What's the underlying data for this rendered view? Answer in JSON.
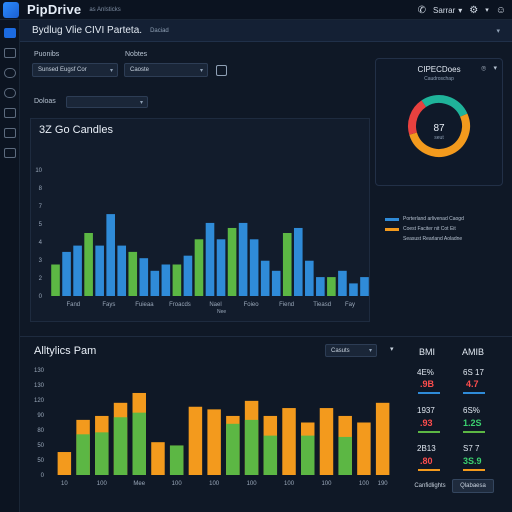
{
  "app": {
    "name": "PipDrive",
    "subtitle": "as Anlsticks",
    "account_label": "Sarrar",
    "page_title": "Bydlug Vlie CIVI Parteta.",
    "page_subtitle": "Daciad"
  },
  "filters": {
    "label_1": "Puonibs",
    "label_2": "Nobtes",
    "select_1": "Sunsed Eugsf Cor",
    "select_2": "Caoste",
    "label_3": "Doloas"
  },
  "main_chart": {
    "title": "3Z Go Candles",
    "x_axis_label": "Nee",
    "legend": [
      {
        "label": "Porterland arlivenad Caogd",
        "color": "#2f8bd8"
      },
      {
        "label": "Coest Faciter nit Cot Eit",
        "color": "#f39a1d"
      },
      {
        "label": "Seasust Rearland Aoladne",
        "color": "#8a9ab0"
      }
    ]
  },
  "donut": {
    "title": "CIPECDoes",
    "subtitle": "Caudroschap",
    "value": "87",
    "value_sub": "seut"
  },
  "analytics": {
    "title": "Alltylics Pam",
    "dropdown": "Casuts",
    "col_1_header": "BMI",
    "col_2_header": "AMIB",
    "stats_col_1": [
      {
        "top": "4E%",
        "bottom": ".9B",
        "color": "#ff4d4d"
      },
      {
        "top": "1937",
        "bottom": ".93",
        "color": "#ff4d4d"
      },
      {
        "top": "2B13",
        "bottom": ".80",
        "color": "#ff4d4d"
      }
    ],
    "stats_col_2": [
      {
        "top": "6S 17",
        "bottom": "4.7",
        "color": "#ff4d4d"
      },
      {
        "top": "6S%",
        "bottom": "1.2S",
        "color": "#3bd16f"
      },
      {
        "top": "S7 7",
        "bottom": "3S.9",
        "color": "#3bd16f"
      }
    ],
    "footer_btn_1": "Canfidlights",
    "footer_btn_2": "Qlabaesa"
  },
  "colors": {
    "blue": "#2f8bd8",
    "green": "#5cb744",
    "orange": "#f39a1d",
    "teal": "#1fb39a",
    "red": "#e8413f",
    "accent": "#1c6be0"
  },
  "chart_data": [
    {
      "type": "bar",
      "title": "3Z Go Candles",
      "xlabel": "Nee",
      "ylabel": "",
      "ylim": [
        0,
        10
      ],
      "yticks": [
        "0",
        "2",
        "3",
        "4",
        "5",
        "7",
        "8",
        "10"
      ],
      "x_labels": [
        {
          "label": "Fand",
          "index": 2
        },
        {
          "label": "Fays",
          "index": 6
        },
        {
          "label": "Fuieaa",
          "index": 10
        },
        {
          "label": "Froacds",
          "index": 14
        },
        {
          "label": "Nael",
          "index": 18
        },
        {
          "label": "Foieo",
          "index": 22
        },
        {
          "label": "Fiend",
          "index": 26
        },
        {
          "label": "Tieasd",
          "index": 30
        },
        {
          "label": "Fay",
          "index": 34
        }
      ],
      "bars": [
        {
          "value": 2.5,
          "series": "green"
        },
        {
          "value": 3.5,
          "series": "blue"
        },
        {
          "value": 4.0,
          "series": "blue"
        },
        {
          "value": 5.0,
          "series": "green"
        },
        {
          "value": 4.0,
          "series": "blue"
        },
        {
          "value": 6.5,
          "series": "blue"
        },
        {
          "value": 4.0,
          "series": "blue"
        },
        {
          "value": 3.5,
          "series": "green"
        },
        {
          "value": 3.0,
          "series": "blue"
        },
        {
          "value": 2.0,
          "series": "blue"
        },
        {
          "value": 2.5,
          "series": "blue"
        },
        {
          "value": 2.5,
          "series": "green"
        },
        {
          "value": 3.2,
          "series": "blue"
        },
        {
          "value": 4.5,
          "series": "green"
        },
        {
          "value": 5.8,
          "series": "blue"
        },
        {
          "value": 4.5,
          "series": "blue"
        },
        {
          "value": 5.4,
          "series": "green"
        },
        {
          "value": 5.8,
          "series": "blue"
        },
        {
          "value": 4.5,
          "series": "blue"
        },
        {
          "value": 2.8,
          "series": "blue"
        },
        {
          "value": 2.0,
          "series": "blue"
        },
        {
          "value": 5.0,
          "series": "green"
        },
        {
          "value": 5.4,
          "series": "blue"
        },
        {
          "value": 2.8,
          "series": "blue"
        },
        {
          "value": 1.5,
          "series": "blue"
        },
        {
          "value": 1.5,
          "series": "green"
        },
        {
          "value": 2.0,
          "series": "blue"
        },
        {
          "value": 1.0,
          "series": "blue"
        },
        {
          "value": 1.5,
          "series": "blue"
        }
      ]
    },
    {
      "type": "donut",
      "title": "CIPECDoes",
      "segments": [
        {
          "color": "#1fb39a",
          "value": 28
        },
        {
          "color": "#f39a1d",
          "value": 52
        },
        {
          "color": "#e8413f",
          "value": 20
        }
      ],
      "center_label": "87"
    },
    {
      "type": "bar",
      "title": "Alltylics Pam",
      "ylim": [
        0,
        160
      ],
      "yticks": [
        "0",
        "50",
        "50",
        "80",
        "90",
        "120",
        "130",
        "130"
      ],
      "x_labels": [
        {
          "label": "10",
          "index": 0
        },
        {
          "label": "100",
          "index": 2
        },
        {
          "label": "Mee",
          "index": 4
        },
        {
          "label": "100",
          "index": 6
        },
        {
          "label": "100",
          "index": 8
        },
        {
          "label": "100",
          "index": 10
        },
        {
          "label": "100",
          "index": 12
        },
        {
          "label": "100",
          "index": 14
        },
        {
          "label": "100",
          "index": 16
        },
        {
          "label": "190",
          "index": 17
        }
      ],
      "bars": [
        {
          "total": 35,
          "green": 0
        },
        {
          "total": 84,
          "green": 62
        },
        {
          "total": 90,
          "green": 65
        },
        {
          "total": 110,
          "green": 88
        },
        {
          "total": 125,
          "green": 95
        },
        {
          "total": 50,
          "green": 0
        },
        {
          "total": 45,
          "green": 45
        },
        {
          "total": 104,
          "green": 0
        },
        {
          "total": 100,
          "green": 0
        },
        {
          "total": 90,
          "green": 78
        },
        {
          "total": 113,
          "green": 84
        },
        {
          "total": 90,
          "green": 60
        },
        {
          "total": 102,
          "green": 0
        },
        {
          "total": 80,
          "green": 60
        },
        {
          "total": 102,
          "green": 0
        },
        {
          "total": 90,
          "green": 58
        },
        {
          "total": 80,
          "green": 0
        },
        {
          "total": 110,
          "green": 0
        }
      ]
    }
  ]
}
